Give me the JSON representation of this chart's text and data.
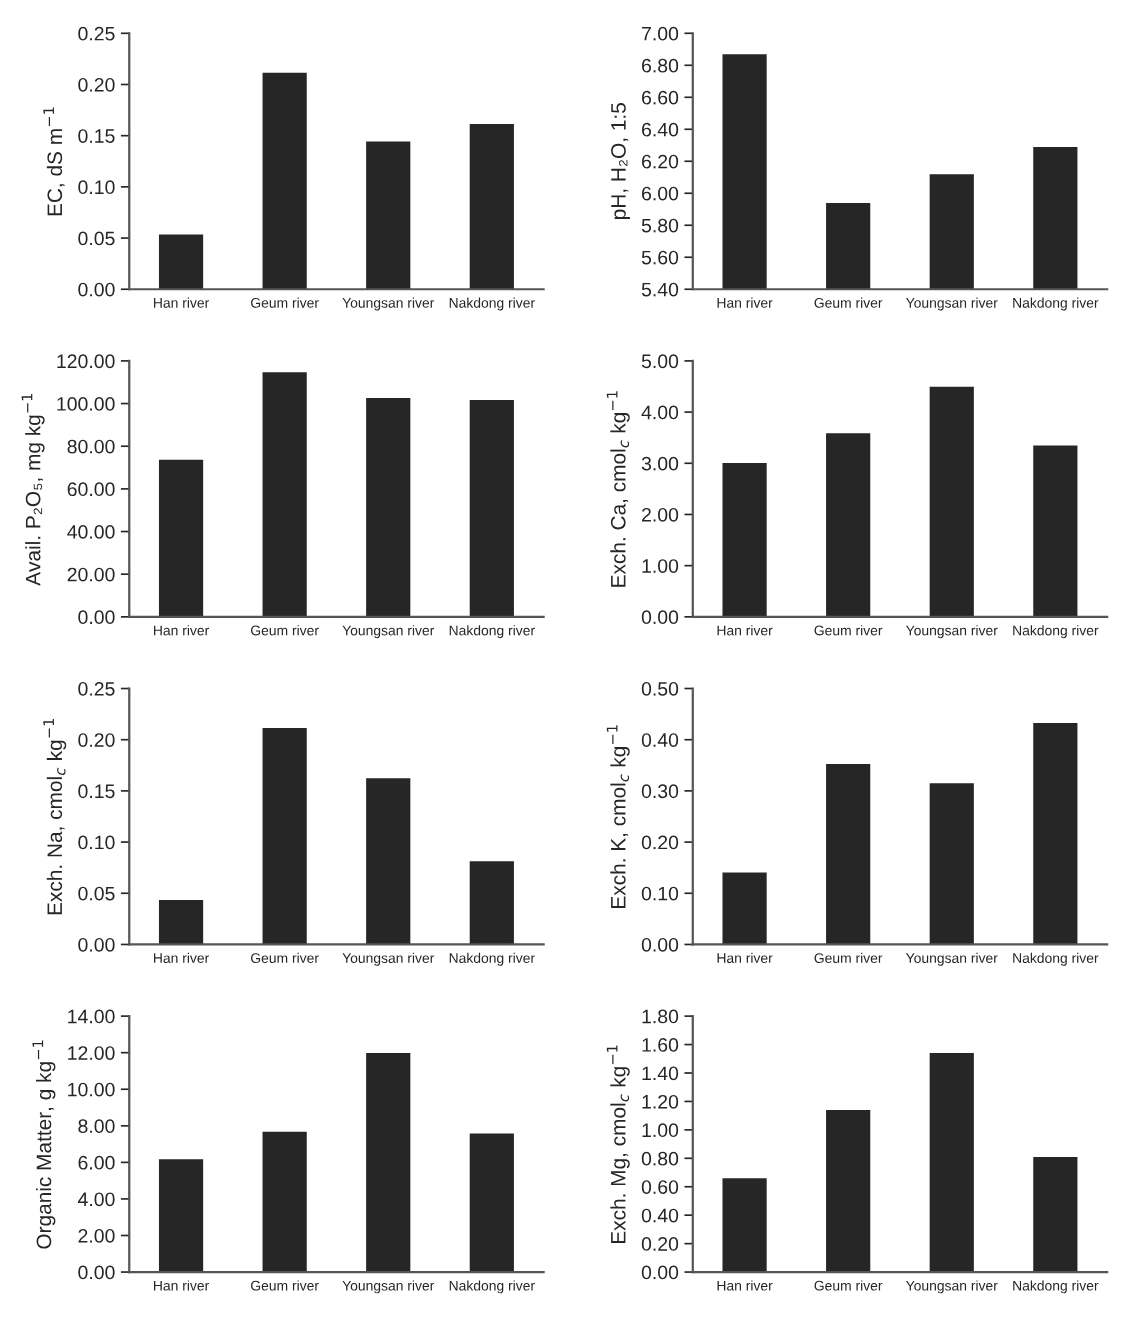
{
  "chart_data": [
    {
      "type": "bar",
      "ylabel": "EC, dS m$^{−1}$",
      "categories": [
        "Han river",
        "Geum river",
        "Youngsan river",
        "Nakdong river"
      ],
      "values": [
        0.052,
        0.21,
        0.143,
        0.16
      ],
      "color": "#262626",
      "ylim": [
        0,
        0.25
      ],
      "yticks": [
        {
          "value": 0,
          "label": "0.00"
        },
        {
          "value": 0.05,
          "label": "0.05"
        },
        {
          "value": 0.1,
          "label": "0.10"
        },
        {
          "value": 0.15,
          "label": "0.15"
        },
        {
          "value": 0.2,
          "label": "0.20"
        },
        {
          "value": 0.25,
          "label": "0.25"
        }
      ],
      "grid": false
    },
    {
      "type": "bar",
      "ylabel": "pH, H₂O, 1:5",
      "categories": [
        "Han river",
        "Geum river",
        "Youngsan river",
        "Nakdong river"
      ],
      "values": [
        6.86,
        5.93,
        6.11,
        6.28
      ],
      "color": "#262626",
      "ylim": [
        5.4,
        7.0
      ],
      "yticks": [
        {
          "value": 5.4,
          "label": "5.40"
        },
        {
          "value": 5.6,
          "label": "5.60"
        },
        {
          "value": 5.8,
          "label": "5.80"
        },
        {
          "value": 6.0,
          "label": "6.00"
        },
        {
          "value": 6.2,
          "label": "6.20"
        },
        {
          "value": 6.4,
          "label": "6.40"
        },
        {
          "value": 6.6,
          "label": "6.60"
        },
        {
          "value": 6.8,
          "label": "6.80"
        },
        {
          "value": 7.0,
          "label": "7.00"
        }
      ],
      "grid": false
    },
    {
      "type": "bar",
      "ylabel": "Avail. P₂O₅, mg kg$^{−1}$",
      "categories": [
        "Han river",
        "Geum river",
        "Youngsan river",
        "Nakdong river"
      ],
      "values": [
        73,
        114,
        102,
        101
      ],
      "color": "#262626",
      "ylim": [
        0,
        120
      ],
      "yticks": [
        {
          "value": 0,
          "label": "0.00"
        },
        {
          "value": 20,
          "label": "20.00"
        },
        {
          "value": 40,
          "label": "40.00"
        },
        {
          "value": 60,
          "label": "60.00"
        },
        {
          "value": 80,
          "label": "80.00"
        },
        {
          "value": 100,
          "label": "100.00"
        },
        {
          "value": 120,
          "label": "120.00"
        }
      ],
      "grid": false
    },
    {
      "type": "bar",
      "ylabel": "Exch. Ca, cmol$_{c}$ kg$^{−1}$",
      "categories": [
        "Han river",
        "Geum river",
        "Youngsan river",
        "Nakdong river"
      ],
      "values": [
        2.98,
        3.56,
        4.47,
        3.32
      ],
      "color": "#262626",
      "ylim": [
        0,
        5
      ],
      "yticks": [
        {
          "value": 0,
          "label": "0.00"
        },
        {
          "value": 1,
          "label": "1.00"
        },
        {
          "value": 2,
          "label": "2.00"
        },
        {
          "value": 3,
          "label": "3.00"
        },
        {
          "value": 4,
          "label": "4.00"
        },
        {
          "value": 5,
          "label": "5.00"
        }
      ],
      "grid": false
    },
    {
      "type": "bar",
      "ylabel": "Exch. Na, cmol$_{c}$ kg$^{−1}$",
      "categories": [
        "Han river",
        "Geum river",
        "Youngsan river",
        "Nakdong river"
      ],
      "values": [
        0.042,
        0.21,
        0.161,
        0.08
      ],
      "color": "#262626",
      "ylim": [
        0,
        0.25
      ],
      "yticks": [
        {
          "value": 0,
          "label": "0.00"
        },
        {
          "value": 0.05,
          "label": "0.05"
        },
        {
          "value": 0.1,
          "label": "0.10"
        },
        {
          "value": 0.15,
          "label": "0.15"
        },
        {
          "value": 0.2,
          "label": "0.20"
        },
        {
          "value": 0.25,
          "label": "0.25"
        }
      ],
      "grid": false
    },
    {
      "type": "bar",
      "ylabel": "Exch. K, cmol$_{c}$ kg$^{−1}$",
      "categories": [
        "Han river",
        "Geum river",
        "Youngsan river",
        "Nakdong river"
      ],
      "values": [
        0.138,
        0.35,
        0.312,
        0.43
      ],
      "color": "#262626",
      "ylim": [
        0,
        0.5
      ],
      "yticks": [
        {
          "value": 0,
          "label": "0.00"
        },
        {
          "value": 0.1,
          "label": "0.10"
        },
        {
          "value": 0.2,
          "label": "0.20"
        },
        {
          "value": 0.3,
          "label": "0.30"
        },
        {
          "value": 0.4,
          "label": "0.40"
        },
        {
          "value": 0.5,
          "label": "0.50"
        }
      ],
      "grid": false
    },
    {
      "type": "bar",
      "ylabel": "Organic Matter, g kg$^{−1}$",
      "categories": [
        "Han river",
        "Geum river",
        "Youngsan river",
        "Nakdong river"
      ],
      "values": [
        6.1,
        7.6,
        11.9,
        7.5
      ],
      "color": "#262626",
      "ylim": [
        0,
        14
      ],
      "yticks": [
        {
          "value": 0,
          "label": "0.00"
        },
        {
          "value": 2,
          "label": "2.00"
        },
        {
          "value": 4,
          "label": "4.00"
        },
        {
          "value": 6,
          "label": "6.00"
        },
        {
          "value": 8,
          "label": "8.00"
        },
        {
          "value": 10,
          "label": "10.00"
        },
        {
          "value": 12,
          "label": "12.00"
        },
        {
          "value": 14,
          "label": "14.00"
        }
      ],
      "grid": false
    },
    {
      "type": "bar",
      "ylabel": "Exch. Mg, cmol$_{c}$ kg$^{−1}$",
      "categories": [
        "Han river",
        "Geum river",
        "Youngsan river",
        "Nakdong river"
      ],
      "values": [
        0.65,
        1.13,
        1.53,
        0.8
      ],
      "color": "#262626",
      "ylim": [
        0,
        1.8
      ],
      "yticks": [
        {
          "value": 0,
          "label": "0.00"
        },
        {
          "value": 0.2,
          "label": "0.20"
        },
        {
          "value": 0.4,
          "label": "0.40"
        },
        {
          "value": 0.6,
          "label": "0.60"
        },
        {
          "value": 0.8,
          "label": "0.80"
        },
        {
          "value": 1.0,
          "label": "1.00"
        },
        {
          "value": 1.2,
          "label": "1.20"
        },
        {
          "value": 1.4,
          "label": "1.40"
        },
        {
          "value": 1.6,
          "label": "1.60"
        },
        {
          "value": 1.8,
          "label": "1.80"
        }
      ],
      "grid": false
    }
  ]
}
